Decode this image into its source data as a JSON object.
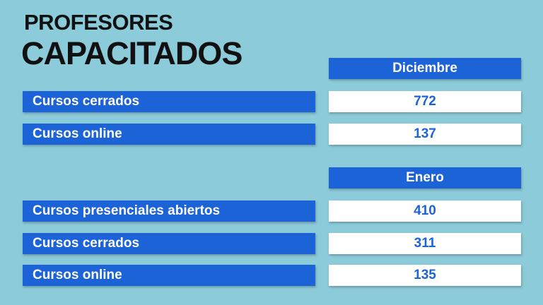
{
  "title": {
    "line1": "PROFESORES",
    "line2": "CAPACITADOS"
  },
  "sections": [
    {
      "month": "Diciembre",
      "rows": [
        {
          "label": "Cursos cerrados",
          "value": "772"
        },
        {
          "label": "Cursos online",
          "value": "137"
        }
      ]
    },
    {
      "month": "Enero",
      "rows": [
        {
          "label": "Cursos presenciales abiertos",
          "value": "410"
        },
        {
          "label": "Cursos cerrados",
          "value": "311"
        },
        {
          "label": "Cursos online",
          "value": "135"
        }
      ]
    }
  ],
  "colors": {
    "background": "#8ccbd9",
    "accent": "#1c63d8",
    "value_bg": "#ffffff"
  }
}
